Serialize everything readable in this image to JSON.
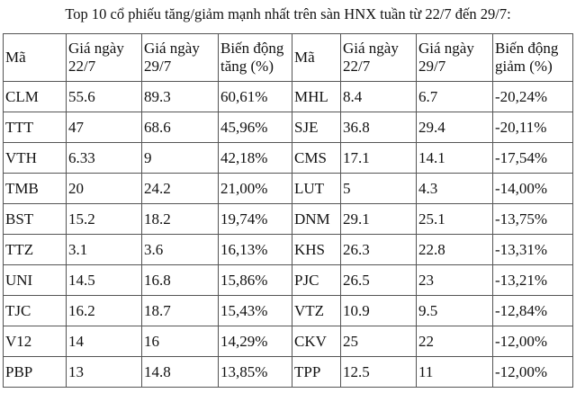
{
  "title": "Top 10 cổ phiếu tăng/giảm mạnh nhất trên sàn HNX tuần từ 22/7 đến 29/7:",
  "headers": [
    "Mã",
    "Giá ngày\n22/7",
    "Giá ngày\n29/7",
    "Biến động\ntăng (%)",
    "Mã",
    "Giá ngày\n22/7",
    "Giá ngày\n29/7",
    "Biến động\ngiảm (%)"
  ],
  "header_lines": [
    [
      "Mã",
      ""
    ],
    [
      "Giá ngày",
      "22/7"
    ],
    [
      "Giá ngày",
      "29/7"
    ],
    [
      "Biến động",
      "tăng (%)"
    ],
    [
      "Mã",
      ""
    ],
    [
      "Giá ngày",
      "22/7"
    ],
    [
      "Giá ngày",
      "29/7"
    ],
    [
      "Biến động",
      "giảm (%)"
    ]
  ],
  "rows": [
    [
      "CLM",
      "55.6",
      "89.3",
      "60,61%",
      "MHL",
      "8.4",
      "6.7",
      "-20,24%"
    ],
    [
      "TTT",
      "47",
      "68.6",
      "45,96%",
      "SJE",
      "36.8",
      "29.4",
      "-20,11%"
    ],
    [
      "VTH",
      "6.33",
      "9",
      "42,18%",
      "CMS",
      "17.1",
      "14.1",
      "-17,54%"
    ],
    [
      "TMB",
      "20",
      "24.2",
      "21,00%",
      "LUT",
      "5",
      "4.3",
      "-14,00%"
    ],
    [
      "BST",
      "15.2",
      "18.2",
      "19,74%",
      "DNM",
      "29.1",
      "25.1",
      "-13,75%"
    ],
    [
      "TTZ",
      "3.1",
      "3.6",
      "16,13%",
      "KHS",
      "26.3",
      "22.8",
      "-13,31%"
    ],
    [
      "UNI",
      "14.5",
      "16.8",
      "15,86%",
      "PJC",
      "26.5",
      "23",
      "-13,21%"
    ],
    [
      "TJC",
      "16.2",
      "18.7",
      "15,43%",
      "VTZ",
      "10.9",
      "9.5",
      "-12,84%"
    ],
    [
      "V12",
      "14",
      "16",
      "14,29%",
      "CKV",
      "25",
      "22",
      "-12,00%"
    ],
    [
      "PBP",
      "13",
      "14.8",
      "13,85%",
      "TPP",
      "12.5",
      "11",
      "-12,00%"
    ]
  ]
}
